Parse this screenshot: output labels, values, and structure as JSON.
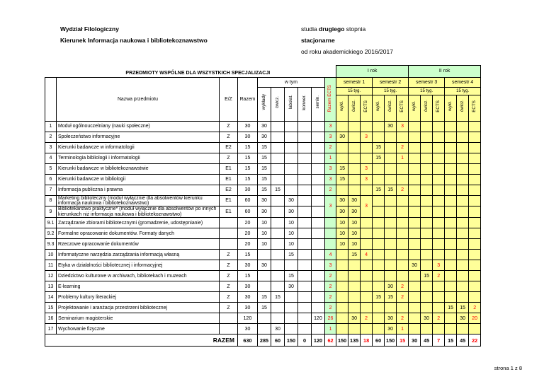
{
  "header": {
    "faculty": "Wydział  Filologiczny",
    "program": "Kierunek  Informacja naukowa i bibliotekoznawstwo",
    "study_prefix": "studia ",
    "study_bold": "drugiego",
    "study_suffix": " stopnia",
    "mode": "stacjonarne",
    "year": "od roku akademickiego 2016/2017"
  },
  "footer": {
    "page": "strona 1 z 8"
  },
  "table": {
    "title": "PRZEDMIOTY WSPÓLNE DLA WSZYSTKICH SPECJALIZACJI",
    "headers": {
      "name": "Nazwa przedmiotu",
      "ez": "E/Z",
      "razem": "Razem",
      "w_tym": "w tym",
      "w_tym_cols": [
        "wykłady",
        "ćwicz.",
        "labolat.",
        "konwer.",
        "semin."
      ],
      "razem_ects": "Razem ECTS",
      "year1": "I rok",
      "year2": "II rok",
      "semesters": [
        "semestr 1",
        "semestr 2",
        "semestr 3",
        "semestr 4"
      ],
      "weeks": "15 tyg.",
      "sem_cols": [
        "wykł.",
        "ćwicz.",
        "ECTS"
      ]
    },
    "colors": {
      "year_green": "#ccffcc",
      "sem_yellow": "#ffff99",
      "ects_red": "#ff0000"
    },
    "rows": [
      {
        "no": "1",
        "name": "Moduł ogólnouczelniany (nauki społeczne)",
        "ez": "Z",
        "razem": "30",
        "wt": [
          "30",
          "",
          "",
          "",
          ""
        ],
        "ects": "3",
        "s": [
          "",
          "",
          "",
          "",
          "30",
          "3",
          "",
          "",
          "",
          "",
          "",
          ""
        ]
      },
      {
        "no": "2",
        "name": "Społeczeństwo informacyjne",
        "ez": "Z",
        "razem": "30",
        "wt": [
          "30",
          "",
          "",
          "",
          ""
        ],
        "ects": "3",
        "s": [
          "30",
          "",
          "3",
          "",
          "",
          "",
          "",
          "",
          "",
          "",
          "",
          ""
        ]
      },
      {
        "no": "3",
        "name": "Kierunki badawcze w informatologii",
        "ez": "E2",
        "razem": "15",
        "wt": [
          "15",
          "",
          "",
          "",
          ""
        ],
        "ects": "2",
        "s": [
          "",
          "",
          "",
          "15",
          "",
          "2",
          "",
          "",
          "",
          "",
          "",
          ""
        ]
      },
      {
        "no": "4",
        "name": "Terminologia bibliologii i informatologii",
        "ez": "Z",
        "razem": "15",
        "wt": [
          "15",
          "",
          "",
          "",
          ""
        ],
        "ects": "1",
        "s": [
          "",
          "",
          "",
          "15",
          "",
          "1",
          "",
          "",
          "",
          "",
          "",
          ""
        ]
      },
      {
        "no": "5",
        "name": "Kierunki badawcze w bibliotekoznawstwie",
        "ez": "E1",
        "razem": "15",
        "wt": [
          "15",
          "",
          "",
          "",
          ""
        ],
        "ects": "3",
        "s": [
          "15",
          "",
          "3",
          "",
          "",
          "",
          "",
          "",
          "",
          "",
          "",
          ""
        ]
      },
      {
        "no": "6",
        "name": "Kierunki badawcze w bibliologii",
        "ez": "E1",
        "razem": "15",
        "wt": [
          "15",
          "",
          "",
          "",
          ""
        ],
        "ects": "3",
        "s": [
          "15",
          "",
          "3",
          "",
          "",
          "",
          "",
          "",
          "",
          "",
          "",
          ""
        ]
      },
      {
        "no": "7",
        "name": "Informacja publiczna i prawna",
        "ez": "E2",
        "razem": "30",
        "wt": [
          "15",
          "15",
          "",
          "",
          ""
        ],
        "ects": "2",
        "s": [
          "",
          "",
          "",
          "15",
          "15",
          "2",
          "",
          "",
          "",
          "",
          "",
          ""
        ]
      },
      {
        "no": "8",
        "name": "Marketing biblioteczny (moduł wyłącznie dla absolwentów kierunku informacja naukowa i bibliotekoznawstwo)",
        "ez": "E1",
        "razem": "60",
        "wt": [
          "30",
          "",
          "30",
          "",
          ""
        ],
        "ects": "3",
        "ectsSpan": 2,
        "s": [
          "30",
          "30",
          "3",
          "",
          "",
          "",
          "",
          "",
          "",
          "",
          "",
          ""
        ],
        "sSpans": {
          "2": 2
        }
      },
      {
        "no": "9",
        "name": "Bibliotekarstwo praktyczne* (moduł wyłącznie dla absolwentów po innych kierunkach niż informacja naukowa i bibliotekoznawstwo)",
        "ez": "E1",
        "razem": "60",
        "wt": [
          "30",
          "",
          "30",
          "",
          ""
        ],
        "ects": null,
        "s": [
          "30",
          "30",
          null,
          "",
          "",
          "",
          "",
          "",
          "",
          "",
          "",
          ""
        ]
      },
      {
        "no": "9.1",
        "name": "Zarządzanie zbiorami bibliotecznymi (gromadzenie, udostępnianie)",
        "ez": "",
        "razem": "20",
        "wt": [
          "10",
          "",
          "10",
          "",
          ""
        ],
        "ects": "",
        "s": [
          "10",
          "10",
          "",
          "",
          "",
          "",
          "",
          "",
          "",
          "",
          "",
          ""
        ]
      },
      {
        "no": "9.2",
        "name": "Formalne opracowanie dokumentów. Formaty danych",
        "ez": "",
        "razem": "20",
        "wt": [
          "10",
          "",
          "10",
          "",
          ""
        ],
        "ects": "",
        "s": [
          "10",
          "10",
          "",
          "",
          "",
          "",
          "",
          "",
          "",
          "",
          "",
          ""
        ]
      },
      {
        "no": "9.3",
        "name": "Rzeczowe opracowanie dokumentów",
        "ez": "",
        "razem": "20",
        "wt": [
          "10",
          "",
          "10",
          "",
          ""
        ],
        "ects": "",
        "s": [
          "10",
          "10",
          "",
          "",
          "",
          "",
          "",
          "",
          "",
          "",
          "",
          ""
        ]
      },
      {
        "no": "10",
        "name": "Informatyczne narzędzia zarządzania informacją własną",
        "ez": "Z",
        "razem": "15",
        "wt": [
          "",
          "",
          "15",
          "",
          ""
        ],
        "ects": "4",
        "s": [
          "",
          "15",
          "4",
          "",
          "",
          "",
          "",
          "",
          "",
          "",
          "",
          ""
        ]
      },
      {
        "no": "11",
        "name": "Etyka w działalności bibliotecznej i informacyjnej",
        "ez": "Z",
        "razem": "30",
        "wt": [
          "30",
          "",
          "",
          "",
          ""
        ],
        "ects": "3",
        "s": [
          "",
          "",
          "",
          "",
          "",
          "",
          "30",
          "",
          "3",
          "",
          "",
          ""
        ]
      },
      {
        "no": "12",
        "name": "Dziedzictwo kulturowe w archiwach, bibliotekach i muzeach",
        "ez": "Z",
        "razem": "15",
        "wt": [
          "",
          "",
          "15",
          "",
          ""
        ],
        "ects": "2",
        "s": [
          "",
          "",
          "",
          "",
          "",
          "",
          "",
          "15",
          "2",
          "",
          "",
          ""
        ]
      },
      {
        "no": "13",
        "name": "E-learning",
        "ez": "Z",
        "razem": "30",
        "wt": [
          "",
          "",
          "30",
          "",
          ""
        ],
        "ects": "2",
        "s": [
          "",
          "",
          "",
          "",
          "30",
          "2",
          "",
          "",
          "",
          "",
          "",
          ""
        ]
      },
      {
        "no": "14",
        "name": "Problemy kultury literackiej",
        "ez": "Z",
        "razem": "30",
        "wt": [
          "15",
          "15",
          "",
          "",
          ""
        ],
        "ects": "2",
        "s": [
          "",
          "",
          "",
          "15",
          "15",
          "2",
          "",
          "",
          "",
          "",
          "",
          ""
        ]
      },
      {
        "no": "15",
        "name": "Projektowanie i aranżacja przestrzeni bibliotecznej",
        "ez": "Z",
        "razem": "30",
        "wt": [
          "15",
          "",
          "",
          "",
          ""
        ],
        "ects": "2",
        "s": [
          "",
          "",
          "",
          "",
          "",
          "",
          "",
          "",
          "",
          "15",
          "15",
          "2"
        ]
      },
      {
        "no": "16",
        "name": "Seminarium magisterskie",
        "ez": "",
        "razem": "120",
        "wt": [
          "",
          "",
          "",
          "",
          "120"
        ],
        "ects": "26",
        "s": [
          "",
          "30",
          "2",
          "",
          "30",
          "2",
          "",
          "30",
          "2",
          "",
          "30",
          "20"
        ]
      },
      {
        "no": "17",
        "name": "Wychowanie fizyczne",
        "ez": "",
        "razem": "30",
        "wt": [
          "",
          "30",
          "",
          "",
          ""
        ],
        "ects": "1",
        "s": [
          "",
          "",
          "",
          "",
          "30",
          "1",
          "",
          "",
          "",
          "",
          "",
          ""
        ]
      }
    ],
    "total": {
      "label": "RAZEM",
      "razem": "630",
      "wt": [
        "285",
        "60",
        "150",
        "0",
        "120"
      ],
      "ects": "62",
      "s": [
        "150",
        "135",
        "18",
        "60",
        "150",
        "15",
        "30",
        "45",
        "7",
        "15",
        "45",
        "22"
      ]
    }
  }
}
